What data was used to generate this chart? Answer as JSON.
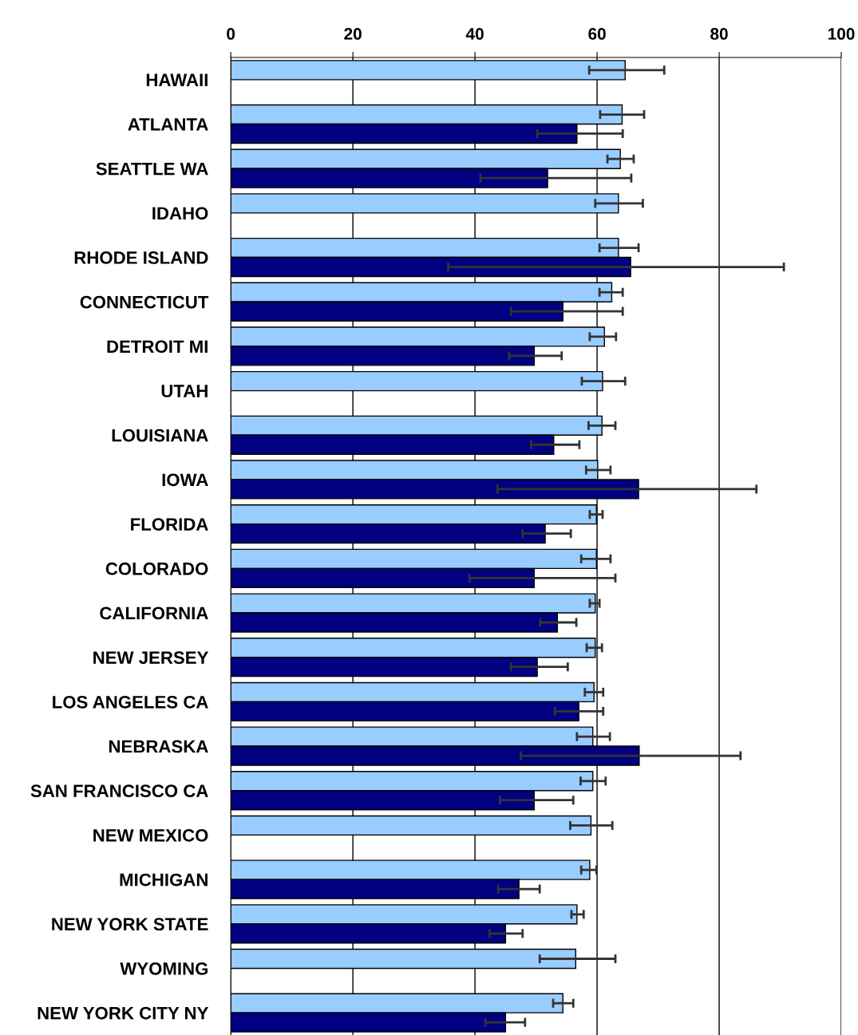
{
  "chart_data": {
    "type": "bar",
    "orientation": "horizontal",
    "categories": [
      "HAWAII",
      "ATLANTA",
      "SEATTLE WA",
      "IDAHO",
      "RHODE ISLAND",
      "CONNECTICUT",
      "DETROIT MI",
      "UTAH",
      "LOUISIANA",
      "IOWA",
      "FLORIDA",
      "COLORADO",
      "CALIFORNIA",
      "NEW JERSEY",
      "LOS ANGELES CA",
      "NEBRASKA",
      "SAN FRANCISCO CA",
      "NEW MEXICO",
      "MICHIGAN",
      "NEW YORK STATE",
      "WYOMING",
      "NEW YORK CITY NY"
    ],
    "series": [
      {
        "color": "#99ccff",
        "values": [
          64.6,
          64.1,
          63.8,
          63.5,
          63.5,
          62.4,
          61.2,
          60.9,
          60.8,
          60.1,
          59.9,
          59.9,
          59.7,
          59.7,
          59.5,
          59.3,
          59.3,
          59.0,
          58.8,
          56.7,
          56.5,
          54.4
        ],
        "errors": [
          [
            58.7,
            71.0
          ],
          [
            60.5,
            67.7
          ],
          [
            61.7,
            66.0
          ],
          [
            59.7,
            67.5
          ],
          [
            60.4,
            66.8
          ],
          [
            60.4,
            64.2
          ],
          [
            58.8,
            63.1
          ],
          [
            57.5,
            64.6
          ],
          [
            58.6,
            63.0
          ],
          [
            58.2,
            62.2
          ],
          [
            58.8,
            60.9
          ],
          [
            57.4,
            62.2
          ],
          [
            58.8,
            60.4
          ],
          [
            58.3,
            60.8
          ],
          [
            58.0,
            61.0
          ],
          [
            56.7,
            62.1
          ],
          [
            57.3,
            61.4
          ],
          [
            55.6,
            62.5
          ],
          [
            57.4,
            59.9
          ],
          [
            55.8,
            57.8
          ],
          [
            50.6,
            63.0
          ],
          [
            52.8,
            56.1
          ]
        ]
      },
      {
        "color": "#000080",
        "values": [
          null,
          56.7,
          51.9,
          null,
          65.5,
          54.4,
          49.7,
          null,
          52.9,
          66.8,
          51.5,
          49.7,
          53.5,
          50.2,
          57.0,
          66.9,
          49.7,
          null,
          47.2,
          45.0,
          null,
          45.0
        ],
        "errors": [
          null,
          [
            50.2,
            64.2
          ],
          [
            40.9,
            65.6
          ],
          null,
          [
            35.6,
            90.6
          ],
          [
            45.9,
            64.2
          ],
          [
            45.6,
            54.2
          ],
          null,
          [
            49.2,
            57.1
          ],
          [
            43.7,
            86.1
          ],
          [
            47.8,
            55.7
          ],
          [
            39.1,
            63.0
          ],
          [
            50.7,
            56.6
          ],
          [
            45.9,
            55.2
          ],
          [
            53.1,
            61.0
          ],
          [
            47.5,
            83.5
          ],
          [
            44.1,
            56.1
          ],
          null,
          [
            43.8,
            50.6
          ],
          [
            42.4,
            47.8
          ],
          null,
          [
            41.7,
            48.2
          ]
        ]
      }
    ],
    "xlim": [
      0,
      100
    ],
    "xticks": [
      0,
      20,
      40,
      60,
      80,
      100
    ],
    "grid": "x"
  }
}
